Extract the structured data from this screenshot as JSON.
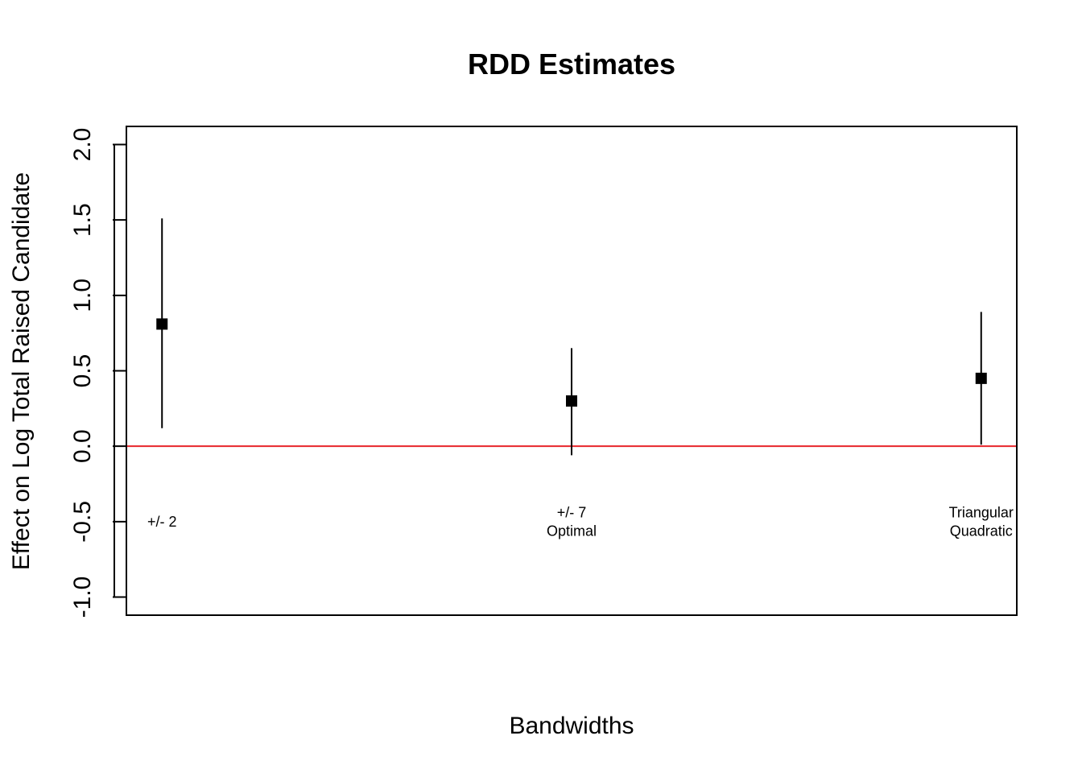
{
  "chart_data": {
    "type": "scatter",
    "title": "RDD Estimates",
    "xlabel": "Bandwidths",
    "ylabel": "Effect on Log Total Raised Candidate",
    "ylim": [
      -1.12,
      2.12
    ],
    "yticks": [
      -1.0,
      -0.5,
      0.0,
      0.5,
      1.0,
      1.5,
      2.0
    ],
    "ytick_labels": [
      "-1.0",
      "-0.5",
      "0.0",
      "0.5",
      "1.0",
      "1.5",
      "2.0"
    ],
    "grid": false,
    "reference_line": {
      "y": 0.0,
      "color": "#e8262b"
    },
    "marker_color": "#000000",
    "points": [
      {
        "label_lines": [
          "+/- 2"
        ],
        "estimate": 0.81,
        "ci_low": 0.12,
        "ci_high": 1.51,
        "label_y": -0.5
      },
      {
        "label_lines": [
          "+/- 7",
          "Optimal"
        ],
        "estimate": 0.3,
        "ci_low": -0.06,
        "ci_high": 0.65,
        "label_y": -0.5
      },
      {
        "label_lines": [
          "Triangular",
          "Quadratic"
        ],
        "estimate": 0.45,
        "ci_low": 0.01,
        "ci_high": 0.89,
        "label_y": -0.5
      }
    ]
  }
}
